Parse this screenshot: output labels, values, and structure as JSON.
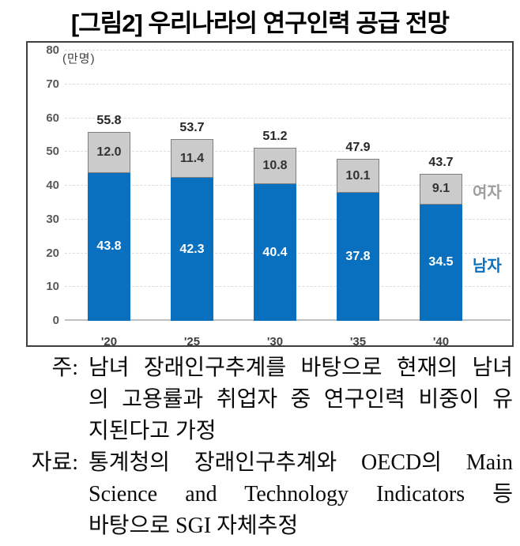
{
  "title": "[그림2] 우리나라의 연구인력 공급 전망",
  "chart_data": {
    "type": "bar",
    "stacked": true,
    "title": "[그림2] 우리나라의 연구인력 공급 전망",
    "unit_label": "(만명)",
    "categories": [
      "'20",
      "'25",
      "'30",
      "'35",
      "'40"
    ],
    "series": [
      {
        "name": "남자",
        "color": "#0870BE",
        "values": [
          43.8,
          42.3,
          40.4,
          37.8,
          34.5
        ],
        "value_labels": [
          "43.8",
          "42.3",
          "40.4",
          "37.8",
          "34.5"
        ]
      },
      {
        "name": "여자",
        "color": "#cbcbcb",
        "values": [
          12.0,
          11.4,
          10.8,
          10.1,
          9.1
        ],
        "value_labels": [
          "12.0",
          "11.4",
          "10.8",
          "10.1",
          "9.1"
        ]
      }
    ],
    "totals": [
      "55.8",
      "53.7",
      "51.2",
      "47.9",
      "43.7"
    ],
    "ylim": [
      0,
      80
    ],
    "ytick_step": 10,
    "grid": true,
    "legend_position": "right-inline",
    "legend_colors": {
      "남자": "#0870BE",
      "여자": "#9e9e9e"
    }
  },
  "notes": [
    {
      "label": "주:",
      "lines": [
        "남녀 장래인구추계를 바탕으로 현재의 남녀",
        "의 고용률과 취업자 중 연구인력 비중이 유",
        "지된다고 가정"
      ]
    },
    {
      "label": "자료:",
      "lines": [
        "통계청의 장래인구추계와 OECD의 Main",
        "Science and Technology Indicators 등",
        "바탕으로 SGI 자체추정"
      ]
    }
  ],
  "colors": {
    "male_bar": "#0870BE",
    "female_bar": "#cbcbcb",
    "female_bar_border": "#7f7f7f",
    "chart_border": "#3f3f3f",
    "tick_text": "#595959",
    "gridline": "#dcdcdc"
  }
}
